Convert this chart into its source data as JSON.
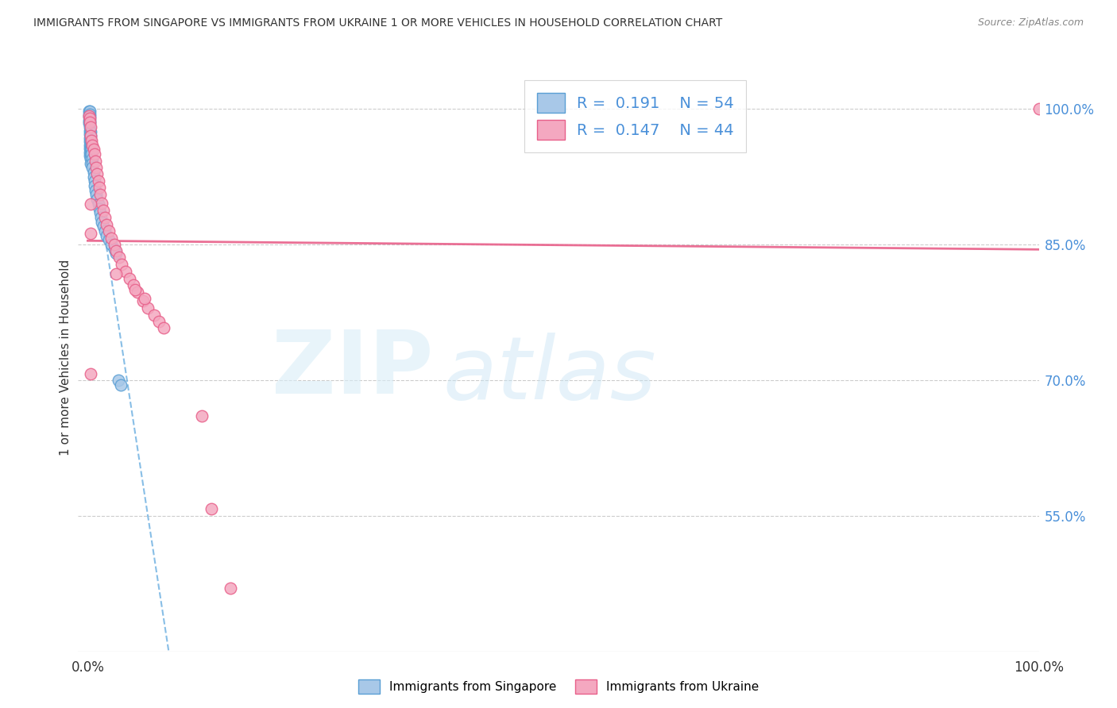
{
  "title": "IMMIGRANTS FROM SINGAPORE VS IMMIGRANTS FROM UKRAINE 1 OR MORE VEHICLES IN HOUSEHOLD CORRELATION CHART",
  "source": "Source: ZipAtlas.com",
  "ylabel": "1 or more Vehicles in Household",
  "xlim": [
    -0.01,
    1.0
  ],
  "ylim": [
    0.4,
    1.05
  ],
  "yticks": [
    0.55,
    0.7,
    0.85,
    1.0
  ],
  "ytick_labels": [
    "55.0%",
    "70.0%",
    "85.0%",
    "100.0%"
  ],
  "xtick_left": "0.0%",
  "xtick_right": "100.0%",
  "legend_r1": "0.191",
  "legend_n1": "54",
  "legend_r2": "0.147",
  "legend_n2": "44",
  "color_singapore": "#a8c8e8",
  "color_ukraine": "#f4a8c0",
  "edge_singapore": "#5a9fd4",
  "edge_ukraine": "#e8608a",
  "trendline_singapore": "#6aaee0",
  "trendline_ukraine": "#e8608a",
  "background_color": "#ffffff",
  "sg_x": [
    0.001,
    0.001,
    0.001,
    0.001,
    0.001,
    0.002,
    0.002,
    0.002,
    0.002,
    0.002,
    0.002,
    0.002,
    0.002,
    0.002,
    0.002,
    0.002,
    0.002,
    0.002,
    0.002,
    0.003,
    0.003,
    0.003,
    0.003,
    0.003,
    0.003,
    0.003,
    0.003,
    0.004,
    0.004,
    0.004,
    0.005,
    0.005,
    0.005,
    0.006,
    0.006,
    0.007,
    0.007,
    0.008,
    0.009,
    0.01,
    0.011,
    0.012,
    0.013,
    0.014,
    0.015,
    0.016,
    0.018,
    0.02,
    0.022,
    0.025,
    0.028,
    0.03,
    0.032,
    0.035
  ],
  "sg_y": [
    0.998,
    0.994,
    0.991,
    0.987,
    0.984,
    0.998,
    0.994,
    0.991,
    0.987,
    0.984,
    0.98,
    0.976,
    0.972,
    0.968,
    0.964,
    0.96,
    0.956,
    0.952,
    0.948,
    0.975,
    0.97,
    0.965,
    0.96,
    0.955,
    0.95,
    0.945,
    0.94,
    0.96,
    0.955,
    0.95,
    0.945,
    0.94,
    0.935,
    0.93,
    0.925,
    0.92,
    0.915,
    0.91,
    0.905,
    0.9,
    0.895,
    0.89,
    0.885,
    0.88,
    0.875,
    0.87,
    0.865,
    0.86,
    0.855,
    0.85,
    0.845,
    0.84,
    0.7,
    0.695
  ],
  "uk_x": [
    0.001,
    0.002,
    0.002,
    0.003,
    0.003,
    0.004,
    0.005,
    0.006,
    0.007,
    0.008,
    0.009,
    0.01,
    0.011,
    0.012,
    0.013,
    0.015,
    0.016,
    0.018,
    0.02,
    0.022,
    0.025,
    0.028,
    0.03,
    0.033,
    0.036,
    0.04,
    0.044,
    0.048,
    0.052,
    0.058,
    0.063,
    0.07,
    0.075,
    0.08,
    0.003,
    0.03,
    0.003,
    0.05,
    0.06,
    0.12,
    0.13,
    0.15,
    0.003,
    1.0
  ],
  "uk_y": [
    0.992,
    0.99,
    0.985,
    0.98,
    0.97,
    0.965,
    0.96,
    0.955,
    0.95,
    0.942,
    0.935,
    0.928,
    0.92,
    0.913,
    0.905,
    0.896,
    0.888,
    0.88,
    0.872,
    0.865,
    0.857,
    0.85,
    0.843,
    0.836,
    0.828,
    0.82,
    0.812,
    0.805,
    0.797,
    0.788,
    0.78,
    0.772,
    0.765,
    0.758,
    0.862,
    0.818,
    0.895,
    0.8,
    0.79,
    0.66,
    0.558,
    0.47,
    0.707,
    1.0
  ]
}
